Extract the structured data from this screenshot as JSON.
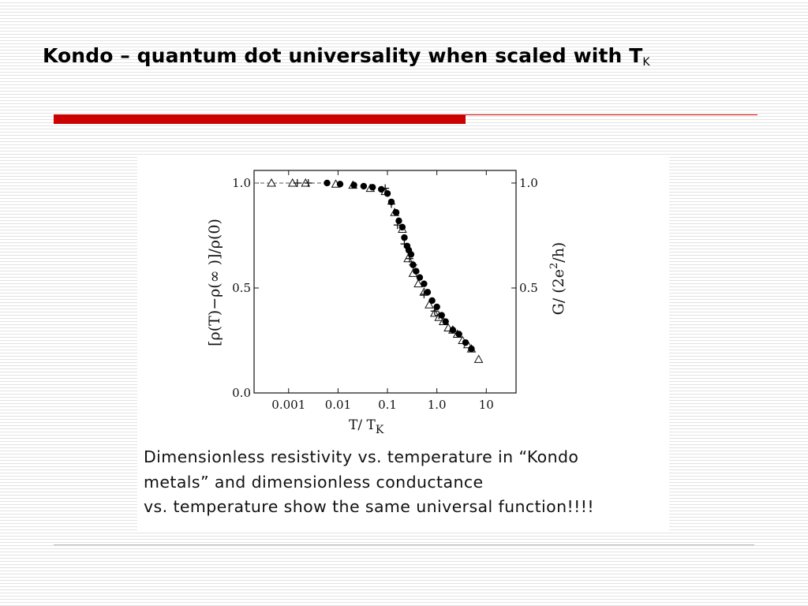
{
  "slide": {
    "title_main": "Kondo – quantum dot universality when scaled with T",
    "title_subscript": "K",
    "accent_color": "#cc0000"
  },
  "caption": {
    "lines": [
      "Dimensionless resistivity vs. temperature in “Kondo",
      "metals” and dimensionless conductance",
      "vs. temperature show the same universal function!!!!"
    ]
  },
  "chart_data": {
    "type": "scatter",
    "xscale": "log",
    "xlim": [
      0.0002,
      40
    ],
    "ylim": [
      0.0,
      1.06
    ],
    "xlabel": "T/ T",
    "xlabel_subscript": "K",
    "ylabel_left": "[ρ(T)−ρ(∞ )]/ρ(0)",
    "ylabel_right_parts": [
      "G/ (2e",
      "2",
      "/h)"
    ],
    "x_ticks": [
      {
        "value": 0.001,
        "label": "0.001"
      },
      {
        "value": 0.01,
        "label": "0.01"
      },
      {
        "value": 0.1,
        "label": "0.1"
      },
      {
        "value": 1.0,
        "label": "1.0"
      },
      {
        "value": 10,
        "label": "10"
      }
    ],
    "y_ticks_left": [
      {
        "value": 0.0,
        "label": "0.0"
      },
      {
        "value": 0.5,
        "label": "0.5"
      },
      {
        "value": 1.0,
        "label": "1.0"
      }
    ],
    "y_ticks_right": [
      {
        "value": 0.5,
        "label": "0.5"
      },
      {
        "value": 1.0,
        "label": "1.0"
      }
    ],
    "series": [
      {
        "marker": "triangle-open",
        "color": "#111111",
        "points": [
          [
            0.00045,
            1.0
          ],
          [
            0.0012,
            1.0
          ],
          [
            0.0022,
            1.0
          ],
          [
            0.009,
            0.995
          ],
          [
            0.02,
            0.99
          ],
          [
            0.045,
            0.975
          ],
          [
            0.09,
            0.96
          ],
          [
            0.14,
            0.86
          ],
          [
            0.2,
            0.78
          ],
          [
            0.26,
            0.64
          ],
          [
            0.33,
            0.57
          ],
          [
            0.42,
            0.52
          ],
          [
            0.55,
            0.48
          ],
          [
            0.7,
            0.42
          ],
          [
            0.9,
            0.38
          ],
          [
            1.1,
            0.36
          ],
          [
            1.35,
            0.34
          ],
          [
            1.7,
            0.31
          ],
          [
            2.1,
            0.3
          ],
          [
            2.6,
            0.28
          ],
          [
            3.3,
            0.25
          ],
          [
            4.2,
            0.23
          ],
          [
            5.0,
            0.21
          ],
          [
            7.0,
            0.16
          ]
        ]
      },
      {
        "marker": "plus",
        "color": "#111111",
        "points": [
          [
            0.0015,
            1.0
          ],
          [
            0.0025,
            1.0
          ],
          [
            0.09,
            0.975
          ],
          [
            0.12,
            0.9
          ],
          [
            0.16,
            0.8
          ],
          [
            0.22,
            0.71
          ],
          [
            0.28,
            0.64
          ],
          [
            0.33,
            0.61
          ],
          [
            0.55,
            0.47
          ],
          [
            0.9,
            0.39
          ],
          [
            1.1,
            0.37
          ]
        ]
      },
      {
        "marker": "filled-circle",
        "color": "#000000",
        "points": [
          [
            0.006,
            1.0
          ],
          [
            0.011,
            0.995
          ],
          [
            0.021,
            0.99
          ],
          [
            0.033,
            0.985
          ],
          [
            0.05,
            0.98
          ],
          [
            0.075,
            0.97
          ],
          [
            0.1,
            0.95
          ],
          [
            0.12,
            0.91
          ],
          [
            0.15,
            0.86
          ],
          [
            0.17,
            0.82
          ],
          [
            0.2,
            0.79
          ],
          [
            0.22,
            0.74
          ],
          [
            0.25,
            0.7
          ],
          [
            0.27,
            0.68
          ],
          [
            0.3,
            0.66
          ],
          [
            0.33,
            0.61
          ],
          [
            0.38,
            0.58
          ],
          [
            0.45,
            0.55
          ],
          [
            0.55,
            0.52
          ],
          [
            0.65,
            0.48
          ],
          [
            0.8,
            0.44
          ],
          [
            1.0,
            0.41
          ],
          [
            1.25,
            0.37
          ],
          [
            1.5,
            0.34
          ],
          [
            2.1,
            0.3
          ],
          [
            2.8,
            0.28
          ],
          [
            3.8,
            0.24
          ],
          [
            5.0,
            0.21
          ]
        ]
      }
    ],
    "reference_curve": {
      "style": "dashed",
      "points": [
        [
          0.0002,
          1.0
        ],
        [
          0.006,
          1.0
        ]
      ]
    }
  }
}
